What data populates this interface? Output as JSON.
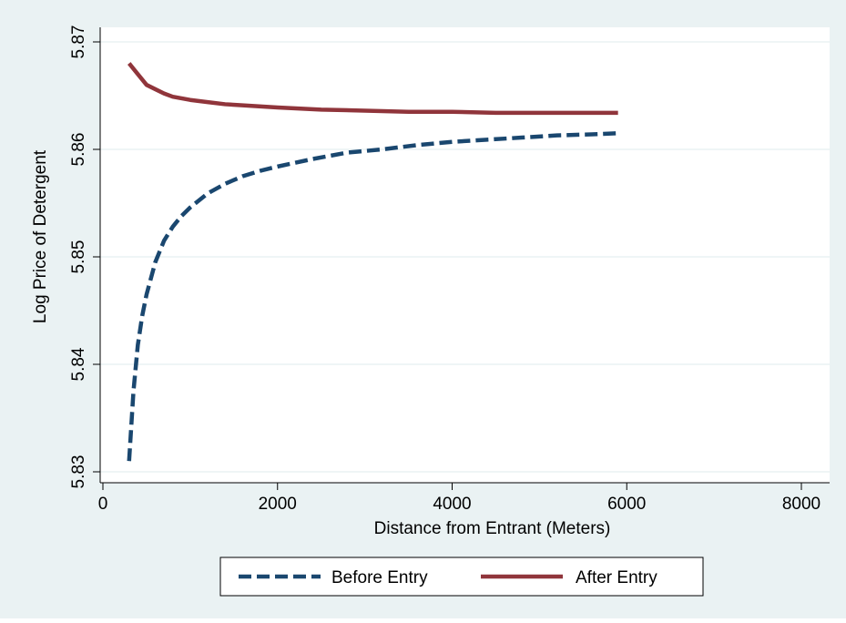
{
  "chart_data": {
    "type": "line",
    "title": "",
    "xlabel": "Distance from Entrant (Meters)",
    "ylabel": "Log Price of Detergent",
    "xlim": [
      0,
      8000
    ],
    "ylim": [
      5.83,
      5.87
    ],
    "xticks": [
      0,
      2000,
      4000,
      6000,
      8000
    ],
    "yticks": [
      5.83,
      5.84,
      5.85,
      5.86,
      5.87
    ],
    "ytick_labels": [
      "5.83",
      "5.84",
      "5.85",
      "5.86",
      "5.87"
    ],
    "grid": true,
    "legend_position": "bottom",
    "colors": {
      "background": "#eaf2f3",
      "plot_area": "#ffffff",
      "gridline": "#eaf2f3"
    },
    "series": [
      {
        "name": "Before Entry",
        "color": "#1a476f",
        "dash": "dashed",
        "x": [
          300,
          350,
          400,
          450,
          500,
          600,
          700,
          800,
          900,
          1000,
          1200,
          1400,
          1600,
          1800,
          2000,
          2400,
          2800,
          3200,
          3600,
          4000,
          4400,
          4800,
          5200,
          5600,
          5900
        ],
        "y": [
          5.831,
          5.8375,
          5.8418,
          5.8445,
          5.8465,
          5.8495,
          5.8515,
          5.8528,
          5.8538,
          5.8546,
          5.8559,
          5.8568,
          5.8575,
          5.858,
          5.8584,
          5.8591,
          5.8597,
          5.86,
          5.8604,
          5.8607,
          5.8609,
          5.8611,
          5.8613,
          5.8614,
          5.8615
        ]
      },
      {
        "name": "After Entry",
        "color": "#90353b",
        "dash": "solid",
        "x": [
          300,
          400,
          500,
          600,
          700,
          800,
          1000,
          1200,
          1400,
          1600,
          2000,
          2500,
          3000,
          3500,
          4000,
          4500,
          5000,
          5500,
          5900
        ],
        "y": [
          5.868,
          5.867,
          5.866,
          5.8656,
          5.8652,
          5.8649,
          5.8646,
          5.8644,
          5.8642,
          5.8641,
          5.8639,
          5.8637,
          5.8636,
          5.8635,
          5.8635,
          5.8634,
          5.8634,
          5.8634,
          5.8634
        ]
      }
    ]
  }
}
